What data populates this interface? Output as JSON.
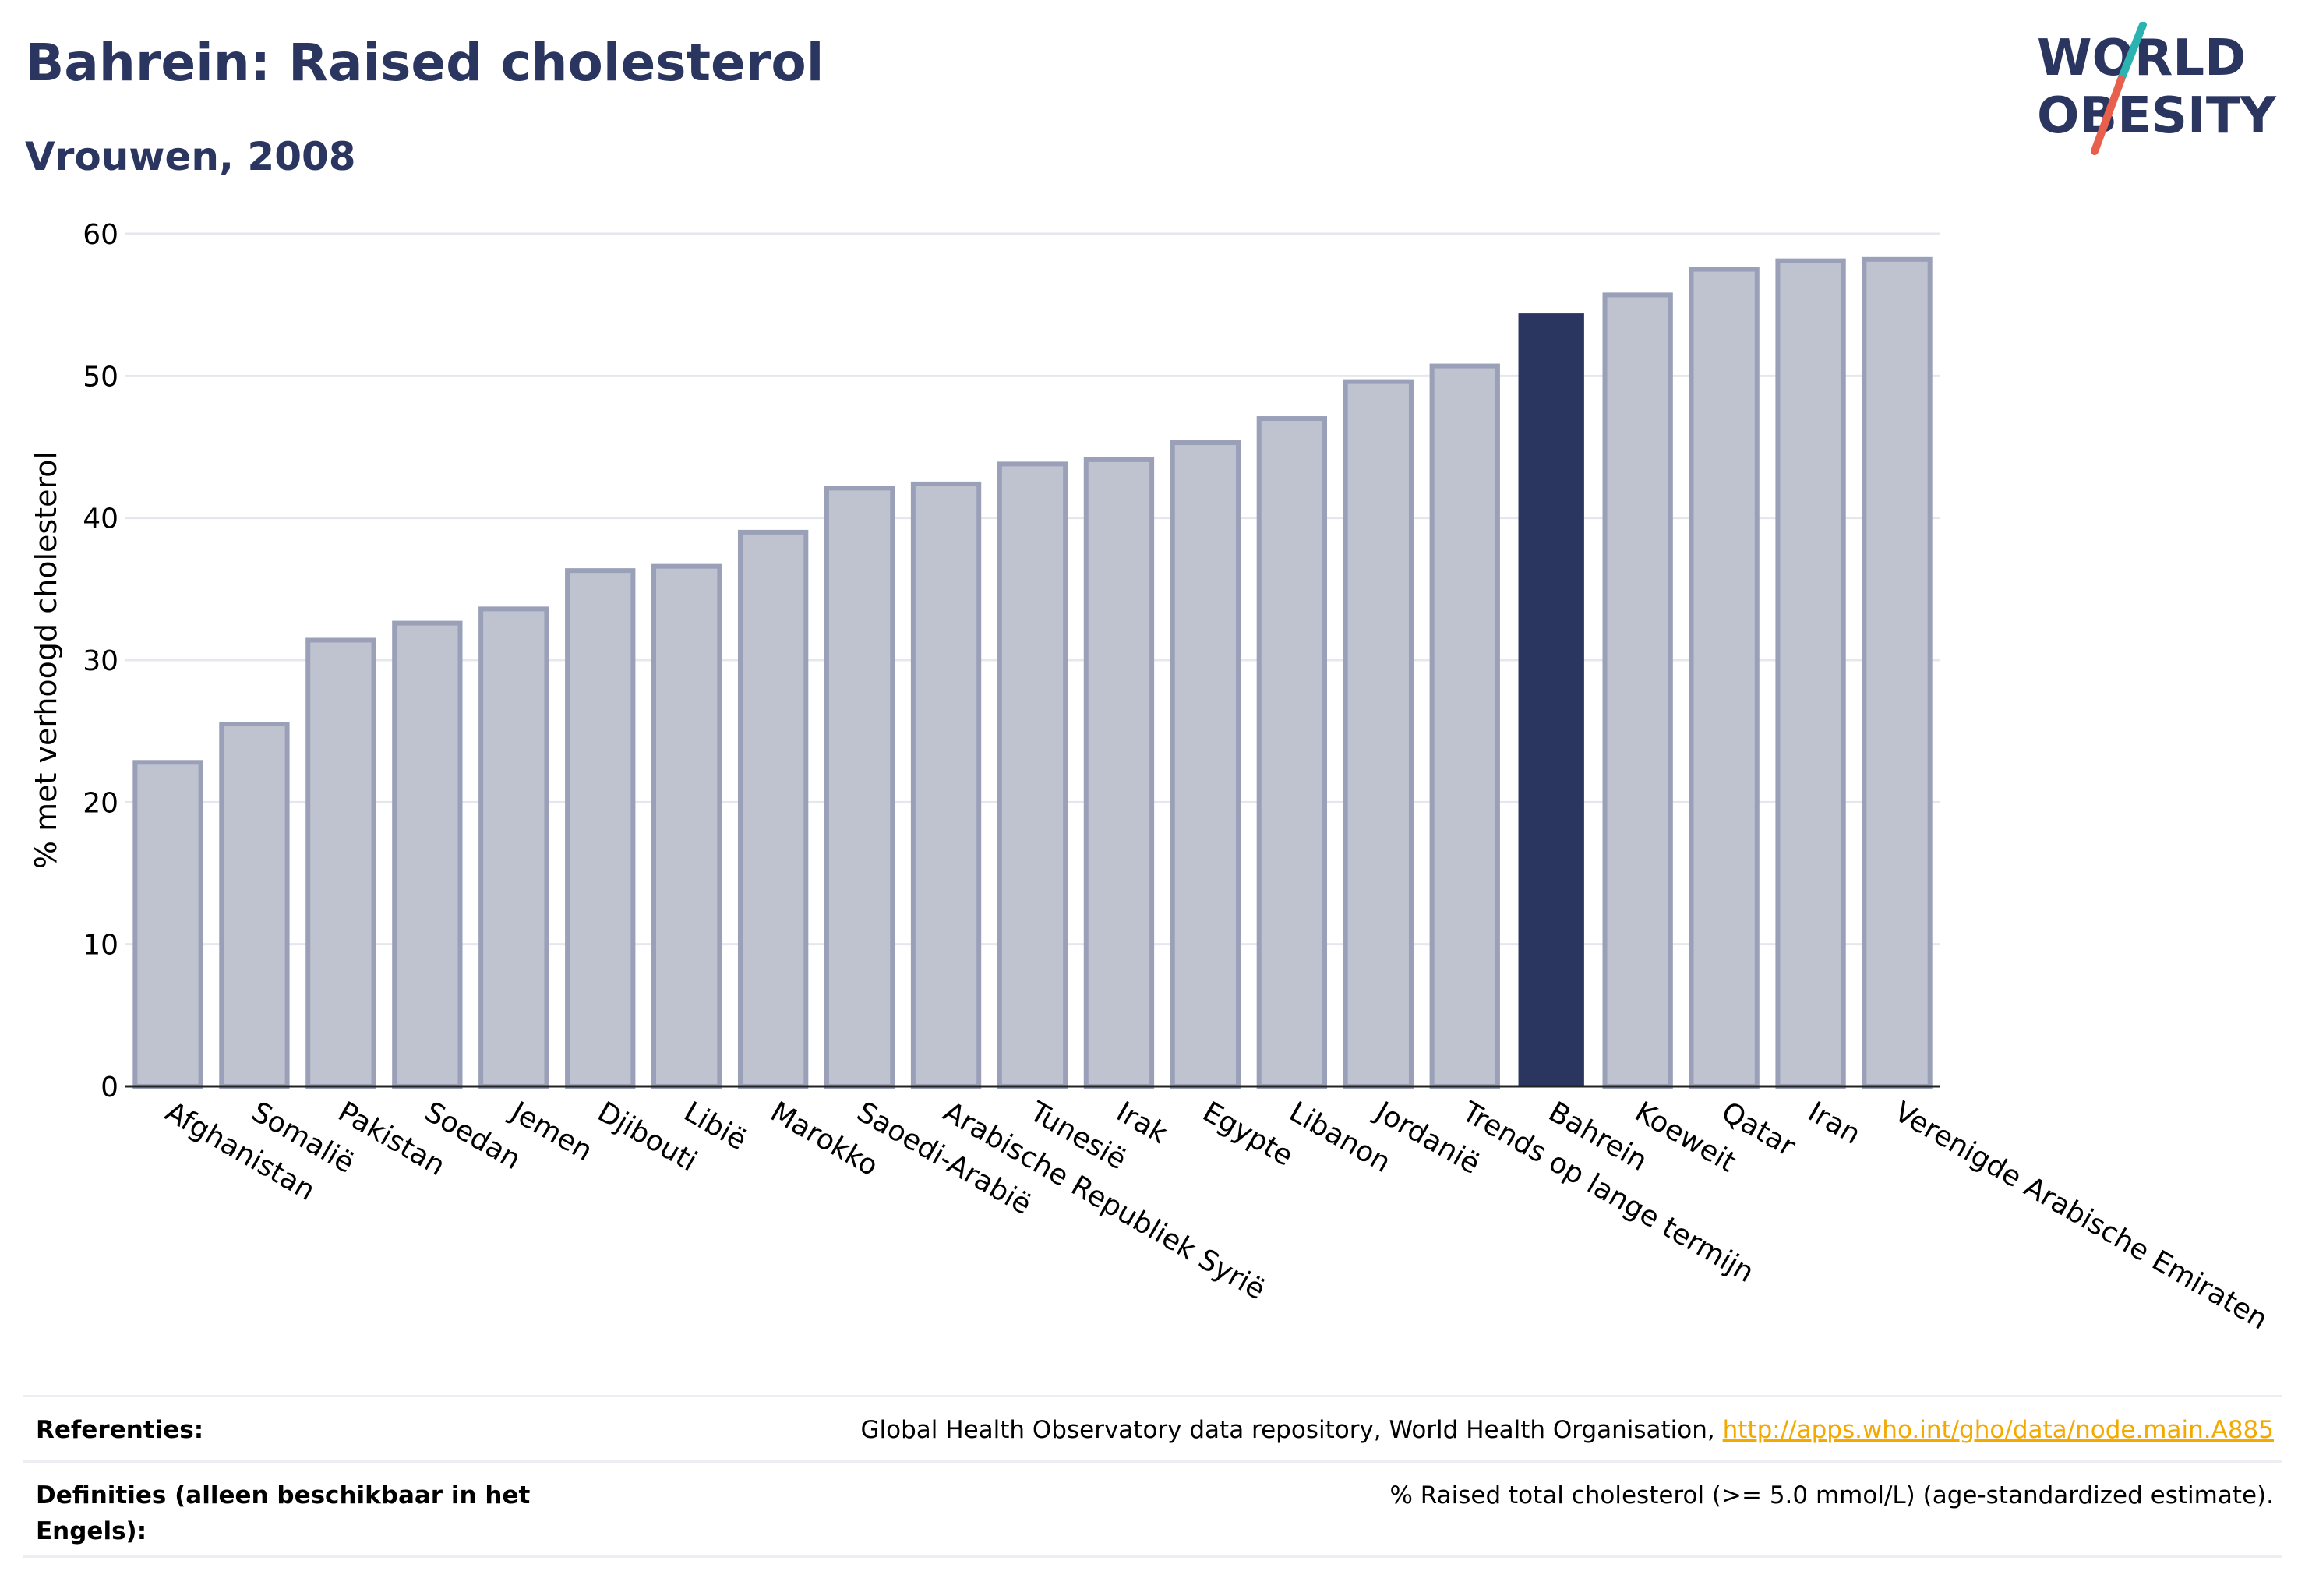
{
  "header": {
    "title": "Bahrein: Raised cholesterol",
    "subtitle": "Vrouwen, 2008"
  },
  "logo": {
    "line1": "WORLD",
    "line2": "OBESITY"
  },
  "chart_data": {
    "type": "bar",
    "title": "Bahrein: Raised cholesterol",
    "subtitle": "Vrouwen, 2008",
    "xlabel": "",
    "ylabel": "% met verhoogd cholesterol",
    "ylim": [
      0,
      60
    ],
    "yticks": [
      0,
      10,
      20,
      30,
      40,
      50,
      60
    ],
    "grid": true,
    "legend": "none",
    "highlight": "Bahrein",
    "colors": {
      "bar": "#bfc2cf",
      "bar_edge": "#9aa0b8",
      "highlight": "#2a3560",
      "grid": "#e6e7ee",
      "axis": "#222222"
    },
    "categories": [
      "Afghanistan",
      "Somalië",
      "Pakistan",
      "Soedan",
      "Jemen",
      "Djibouti",
      "Libië",
      "Marokko",
      "Saoedi-Arabië",
      "Arabische Republiek Syrië",
      "Tunesië",
      "Irak",
      "Egypte",
      "Libanon",
      "Jordanië",
      "Trends op lange termijn",
      "Bahrein",
      "Koeweit",
      "Qatar",
      "Iran",
      "Verenigde Arabische Emiraten"
    ],
    "values": [
      22.8,
      25.5,
      31.4,
      32.6,
      33.6,
      36.3,
      36.6,
      39.0,
      42.1,
      42.4,
      43.8,
      44.1,
      45.3,
      47.0,
      49.6,
      50.7,
      54.4,
      55.7,
      57.5,
      58.1,
      58.2
    ]
  },
  "references": {
    "label": "Referenties:",
    "source": "Global Health Observatory data repository, World Health Organisation, ",
    "link": "http://apps.who.int/gho/data/node.main.A885"
  },
  "definitions": {
    "label": "Definities (alleen beschikbaar in het Engels):",
    "text": "% Raised total cholesterol (>= 5.0 mmol/L) (age-standardized estimate)."
  }
}
